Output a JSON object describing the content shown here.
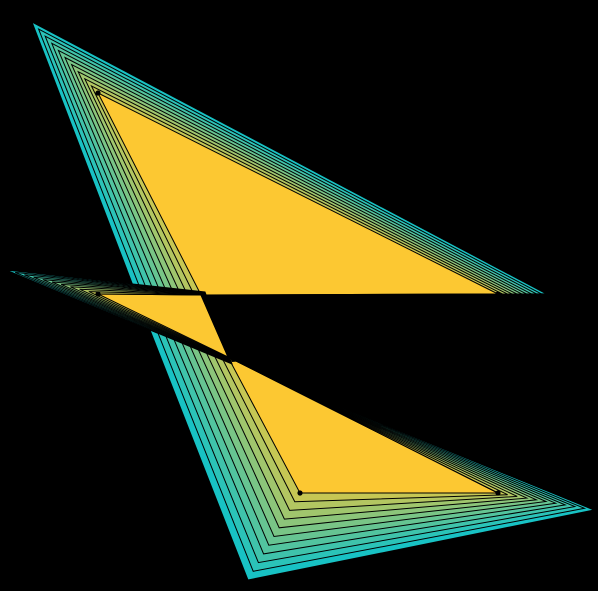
{
  "diagram": {
    "background_color": "#000000",
    "outline_color": "#000000",
    "offset_layers": 10,
    "outer_color": "#18c2c4",
    "inner_color": "#fcc832"
  }
}
